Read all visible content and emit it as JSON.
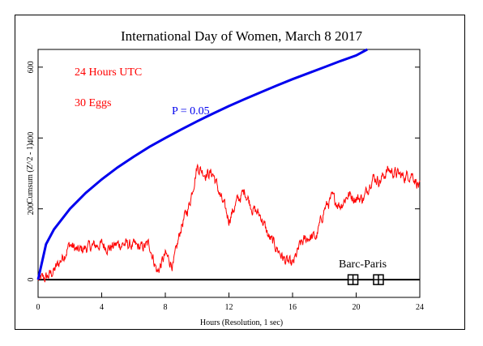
{
  "chart_data": {
    "type": "line",
    "title": "International Day of Women, March 8 2017",
    "xlabel": "Hours (Resolution, 1 sec)",
    "ylabel": "Cumsum (Z^2 - 1)",
    "xlim": [
      0,
      24
    ],
    "ylim": [
      -50,
      650
    ],
    "xticks": [
      0,
      4,
      8,
      12,
      16,
      20,
      24
    ],
    "yticks": [
      0,
      200,
      400,
      600
    ],
    "annotations": {
      "duration": "24 Hours UTC",
      "eggs": "30 Eggs",
      "probability": "P = 0.05",
      "event": "Barc-Paris"
    },
    "event_markers_x": [
      19.8,
      21.4
    ],
    "colors": {
      "cumsum": "#ff0000",
      "probability": "#0000ee",
      "text_red": "#ff0000",
      "text_blue": "#0000ee",
      "axis": "#000000"
    },
    "series": [
      {
        "values": [
          [
            0,
            0
          ],
          [
            0.5,
            5
          ],
          [
            1.0,
            25
          ],
          [
            1.5,
            60
          ],
          [
            2.0,
            100
          ],
          [
            2.5,
            80
          ],
          [
            3.0,
            90
          ],
          [
            3.5,
            95
          ],
          [
            4.0,
            100
          ],
          [
            4.5,
            90
          ],
          [
            5.0,
            100
          ],
          [
            5.5,
            100
          ],
          [
            6.0,
            95
          ],
          [
            6.5,
            90
          ],
          [
            7.0,
            100
          ],
          [
            7.5,
            20
          ],
          [
            8.0,
            70
          ],
          [
            8.5,
            40
          ],
          [
            9.0,
            150
          ],
          [
            9.5,
            210
          ],
          [
            10.0,
            320
          ],
          [
            10.5,
            300
          ],
          [
            11.0,
            300
          ],
          [
            11.5,
            230
          ],
          [
            12.0,
            170
          ],
          [
            12.5,
            220
          ],
          [
            13.0,
            250
          ],
          [
            13.5,
            200
          ],
          [
            14.0,
            180
          ],
          [
            14.5,
            120
          ],
          [
            15.0,
            90
          ],
          [
            15.5,
            55
          ],
          [
            16.0,
            40
          ],
          [
            16.5,
            100
          ],
          [
            17.0,
            120
          ],
          [
            17.5,
            120
          ],
          [
            18.0,
            200
          ],
          [
            18.5,
            230
          ],
          [
            19.0,
            210
          ],
          [
            19.5,
            240
          ],
          [
            20.0,
            230
          ],
          [
            20.5,
            230
          ],
          [
            21.0,
            290
          ],
          [
            21.5,
            280
          ],
          [
            22.0,
            310
          ],
          [
            22.5,
            300
          ],
          [
            23.0,
            290
          ],
          [
            23.5,
            300
          ],
          [
            24.0,
            260
          ]
        ]
      },
      {
        "values": [
          [
            0,
            0
          ],
          [
            0.5,
            100
          ],
          [
            1,
            142
          ],
          [
            2,
            200
          ],
          [
            3,
            245
          ],
          [
            4,
            283
          ],
          [
            5,
            317
          ],
          [
            6,
            347
          ],
          [
            7,
            375
          ],
          [
            8,
            400
          ],
          [
            9,
            424
          ],
          [
            10,
            447
          ],
          [
            11,
            469
          ],
          [
            12,
            490
          ],
          [
            13,
            510
          ],
          [
            14,
            529
          ],
          [
            15,
            548
          ],
          [
            16,
            566
          ],
          [
            17,
            583
          ],
          [
            18,
            600
          ],
          [
            19,
            617
          ],
          [
            20,
            633
          ],
          [
            20.7,
            650
          ]
        ]
      }
    ]
  }
}
